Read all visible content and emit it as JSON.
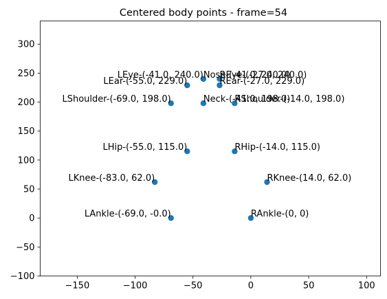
{
  "chart_data": {
    "type": "scatter",
    "title": "Centered body points - frame=54",
    "xlabel": "",
    "ylabel": "",
    "xlim": [
      -182,
      112
    ],
    "ylim": [
      -100,
      340
    ],
    "grid": false,
    "point_color": "#1f77b4",
    "xticks": [
      {
        "value": -150,
        "label": "−150"
      },
      {
        "value": -100,
        "label": "−100"
      },
      {
        "value": -50,
        "label": "−50"
      },
      {
        "value": 0,
        "label": "0"
      },
      {
        "value": 50,
        "label": "50"
      },
      {
        "value": 100,
        "label": "100"
      }
    ],
    "yticks": [
      {
        "value": -100,
        "label": "−100"
      },
      {
        "value": -50,
        "label": "−50"
      },
      {
        "value": 0,
        "label": "0"
      },
      {
        "value": 50,
        "label": "50"
      },
      {
        "value": 100,
        "label": "100"
      },
      {
        "value": 150,
        "label": "150"
      },
      {
        "value": 200,
        "label": "200"
      },
      {
        "value": 250,
        "label": "250"
      },
      {
        "value": 300,
        "label": "300"
      }
    ],
    "points": [
      {
        "x": -41,
        "y": 240,
        "label": "Nose-(-41.0, 240.0)",
        "align": "left"
      },
      {
        "x": -27,
        "y": 240,
        "label": "REye-(-27.0, 240.0)",
        "align": "left"
      },
      {
        "x": -41,
        "y": 240,
        "label": "LEye-(-41.0, 240.0)",
        "align": "right"
      },
      {
        "x": -27,
        "y": 229,
        "label": "REar-(-27.0, 229.0)",
        "align": "left"
      },
      {
        "x": -55,
        "y": 229,
        "label": "LEar-(-55.0, 229.0)",
        "align": "right"
      },
      {
        "x": -41,
        "y": 198,
        "label": "Neck-(-41.0, 198.0)",
        "align": "left"
      },
      {
        "x": -14,
        "y": 198,
        "label": "RShoulder-(-14.0, 198.0)",
        "align": "left"
      },
      {
        "x": -69,
        "y": 198,
        "label": "LShoulder-(-69.0, 198.0)",
        "align": "right"
      },
      {
        "x": -14,
        "y": 115,
        "label": "RHip-(-14.0, 115.0)",
        "align": "left"
      },
      {
        "x": -55,
        "y": 115,
        "label": "LHip-(-55.0, 115.0)",
        "align": "right"
      },
      {
        "x": 14,
        "y": 62,
        "label": "RKnee-(14.0, 62.0)",
        "align": "left"
      },
      {
        "x": -83,
        "y": 62,
        "label": "LKnee-(-83.0, 62.0)",
        "align": "right"
      },
      {
        "x": 0,
        "y": 0,
        "label": "RAnkle-(0, 0)",
        "align": "left"
      },
      {
        "x": -69,
        "y": 0,
        "label": "LAnkle-(-69.0, -0.0)",
        "align": "right"
      }
    ]
  }
}
